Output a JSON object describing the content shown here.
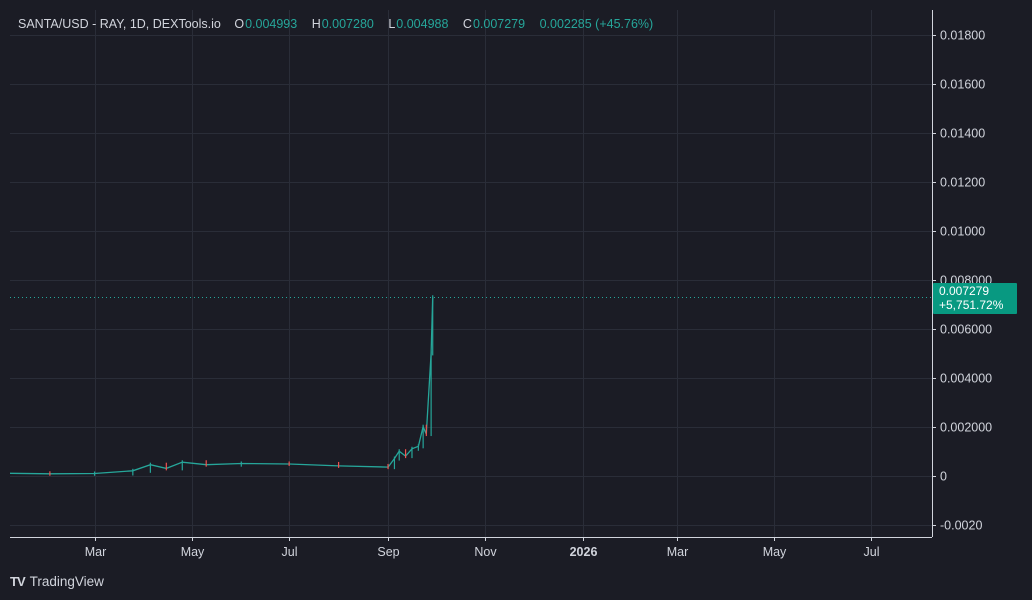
{
  "legend": {
    "symbol": "SANTA/USD - RAY, 1D, DEXTools.io",
    "open_label": "O",
    "open": "0.004993",
    "high_label": "H",
    "high": "0.007280",
    "low_label": "L",
    "low": "0.004988",
    "close_label": "C",
    "close": "0.007279",
    "change": "0.002285 (+45.76%)"
  },
  "price_badge": {
    "price": "0.007279",
    "percent": "+5,751.72%"
  },
  "brand": {
    "logo": "TV",
    "name": "TradingView"
  },
  "colors": {
    "background": "#1b1c25",
    "grid": "#2a2d38",
    "up": "#26a69a",
    "down": "#ef5350",
    "badge": "#089981",
    "text": "#d1d4dc"
  },
  "chart_data": {
    "type": "candlestick",
    "title": "SANTA/USD - RAY, 1D, DEXTools.io",
    "xlabel": "",
    "ylabel": "",
    "ylim": [
      -0.0025,
      0.019
    ],
    "y_ticks": [
      "0.01800",
      "0.01600",
      "0.01400",
      "0.01200",
      "0.01000",
      "0.008000",
      "0.006000",
      "0.004000",
      "0.002000",
      "0",
      "-0.0020"
    ],
    "y_tick_values": [
      0.018,
      0.016,
      0.014,
      0.012,
      0.01,
      0.008,
      0.006,
      0.004,
      0.002,
      0,
      -0.002
    ],
    "x_ticks": [
      "Mar",
      "May",
      "Jul",
      "Sep",
      "Nov",
      "2026",
      "Mar",
      "May",
      "Jul"
    ],
    "x_tick_dates": [
      "2025-03-01",
      "2025-05-01",
      "2025-07-01",
      "2025-09-01",
      "2025-11-01",
      "2026-01-01",
      "2026-03-01",
      "2026-05-01",
      "2026-07-01"
    ],
    "x_bold_ticks": [
      "2026"
    ],
    "x_range": [
      "2025-01-07",
      "2026-08-08"
    ],
    "last_price": 0.007279,
    "grid": true,
    "series": [
      {
        "name": "SANTA/USD",
        "values": [
          {
            "date": "2025-01-07",
            "value": 0.0001
          },
          {
            "date": "2025-02-01",
            "value": 8e-05
          },
          {
            "date": "2025-03-01",
            "value": 9e-05
          },
          {
            "date": "2025-03-25",
            "value": 0.0002
          },
          {
            "date": "2025-04-05",
            "value": 0.00045
          },
          {
            "date": "2025-04-15",
            "value": 0.0003
          },
          {
            "date": "2025-04-25",
            "value": 0.00055
          },
          {
            "date": "2025-05-10",
            "value": 0.00045
          },
          {
            "date": "2025-06-01",
            "value": 0.0005
          },
          {
            "date": "2025-07-01",
            "value": 0.00048
          },
          {
            "date": "2025-08-01",
            "value": 0.0004
          },
          {
            "date": "2025-09-01",
            "value": 0.00035
          },
          {
            "date": "2025-09-05",
            "value": 0.0007
          },
          {
            "date": "2025-09-08",
            "value": 0.001
          },
          {
            "date": "2025-09-12",
            "value": 0.0008
          },
          {
            "date": "2025-09-16",
            "value": 0.0011
          },
          {
            "date": "2025-09-20",
            "value": 0.0012
          },
          {
            "date": "2025-09-23",
            "value": 0.002
          },
          {
            "date": "2025-09-25",
            "value": 0.0017
          },
          {
            "date": "2025-09-28",
            "value": 0.00499
          },
          {
            "date": "2025-09-29",
            "value": 0.00728
          }
        ]
      }
    ]
  }
}
